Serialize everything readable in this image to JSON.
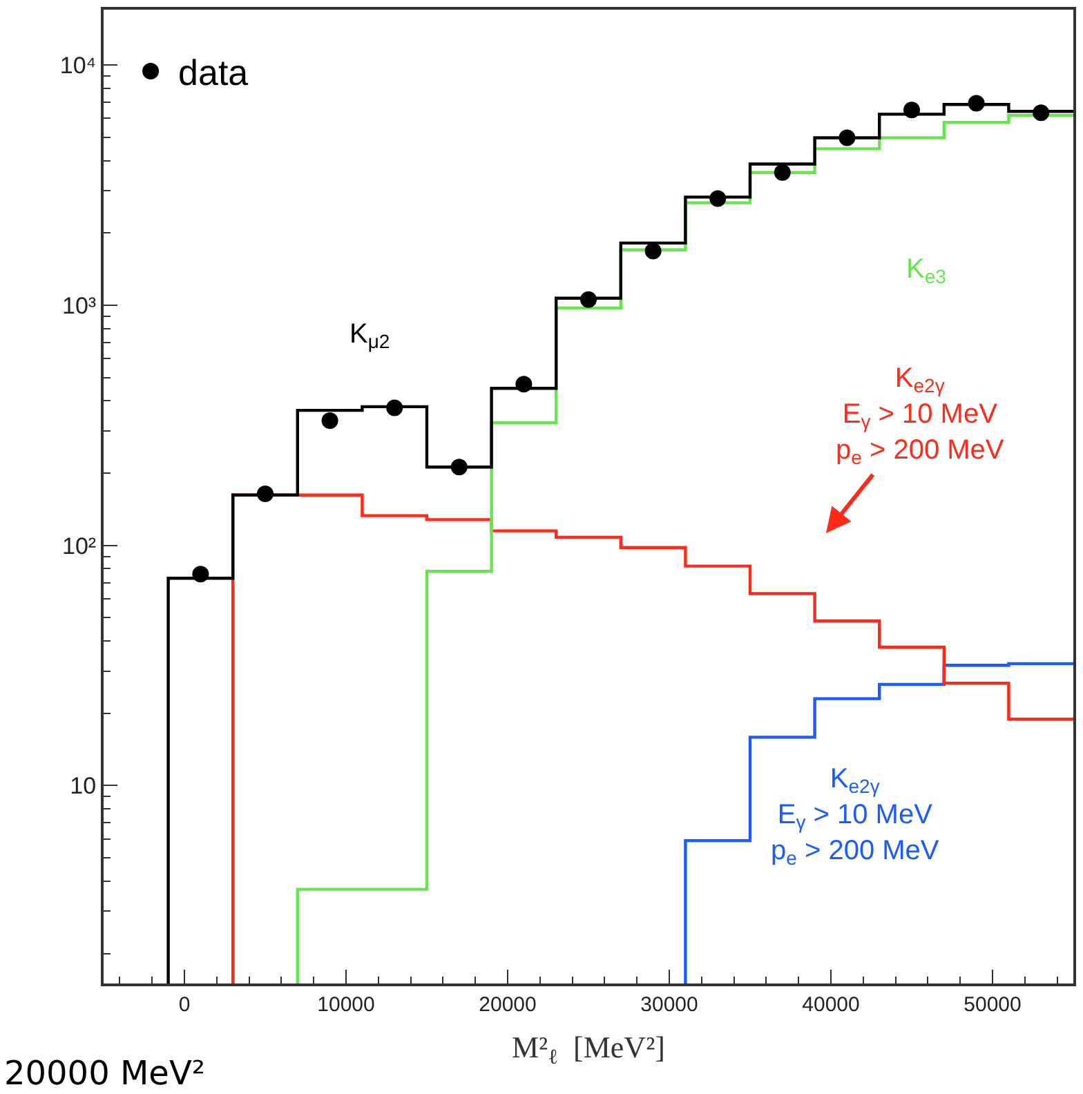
{
  "chart_data": {
    "type": "step",
    "series": [
      {
        "name": "K$_{μ2}$",
        "color": "#000000",
        "x": [
          -1000,
          3000,
          7000,
          11000,
          15000,
          19000,
          23000,
          27000,
          31000,
          35000,
          39000,
          43000,
          47000,
          51000,
          55000
        ],
        "values": [
          73,
          162,
          365,
          378,
          212,
          451,
          1070,
          1815,
          2820,
          3870,
          4980,
          6240,
          6850,
          6410,
          6410
        ]
      },
      {
        "name": "K$_{e3}$",
        "color": "#66e64d",
        "x": [
          7000,
          11000,
          15000,
          19000,
          23000,
          27000,
          31000,
          35000,
          39000,
          43000,
          47000,
          51000,
          55000
        ],
        "values": [
          3.7,
          3.7,
          78,
          324,
          973,
          1700,
          2670,
          3570,
          4480,
          4980,
          5770,
          6170,
          6170
        ]
      },
      {
        "name": "K$_{e2γ}$\nE$_{γ}$ > 10 MeV\np$_{e}$ > 200 MeV",
        "color": "#ff2a1a",
        "x": [
          3000,
          7000,
          11000,
          15000,
          19000,
          23000,
          27000,
          31000,
          35000,
          39000,
          43000,
          47000,
          51000,
          55000
        ],
        "values": [
          162,
          162,
          133,
          128,
          115,
          108,
          98,
          82,
          63,
          48.5,
          37.7,
          26.7,
          18.9,
          18.9
        ]
      },
      {
        "name": "K$_{e2γ}$\nE$_{γ}$ > 10 MeV\np$_{e}$ > 200 MeV",
        "color": "#1a5cff",
        "x": [
          31000,
          35000,
          39000,
          43000,
          47000,
          51000,
          55000
        ],
        "values": [
          5.9,
          15.9,
          23,
          26.4,
          31.7,
          32.2,
          32.2
        ]
      },
      {
        "name": "data",
        "type": "scatter",
        "marker": "circle",
        "color": "#000000",
        "x": [
          1000,
          5000,
          9000,
          13000,
          17000,
          21000,
          25000,
          29000,
          33000,
          37000,
          41000,
          45000,
          49000,
          53000
        ],
        "values": [
          76,
          164,
          331,
          374,
          212,
          469,
          1055,
          1680,
          2780,
          3570,
          4980,
          6500,
          6930,
          6330
        ]
      }
    ],
    "xlabel": "M²$_{ℓ}$  [MeV²]",
    "annotations": [
      "20000 MeV²"
    ],
    "log": "y",
    "xlim": [
      -5000,
      55000
    ],
    "xticks": [
      0,
      10000,
      20000,
      30000,
      40000,
      50000
    ],
    "ylim": [
      1.5,
      17000
    ],
    "yticks": [
      {
        "value": 10,
        "label": "10"
      },
      {
        "value": 100,
        "label": "10²"
      },
      {
        "value": 1000,
        "label": "10³"
      },
      {
        "value": 10000,
        "label": "10⁴"
      }
    ],
    "legend": "top left"
  }
}
